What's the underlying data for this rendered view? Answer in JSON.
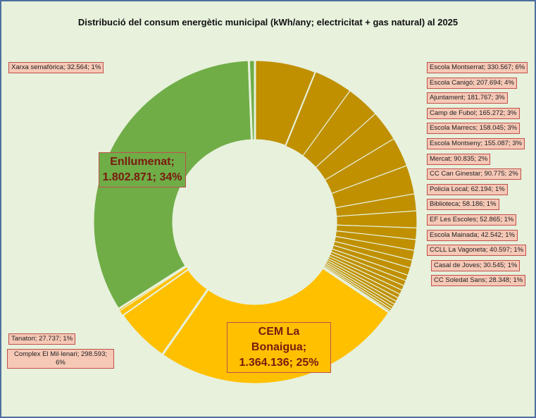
{
  "chart_data": {
    "type": "pie",
    "variant": "doughnut",
    "title": "Distribució del consum energètic municipal (kWh/any; electricitat + gas natural) al 2025",
    "slices": [
      {
        "label": "Escola Montserrat",
        "value": 330567,
        "pct": "6%",
        "text": "Escola Montserrat; 330.567; 6%"
      },
      {
        "label": "Escola Canigó",
        "value": 207694,
        "pct": "4%",
        "text": "Escola Canigó; 207.694; 4%"
      },
      {
        "label": "Ajuntament",
        "value": 181767,
        "pct": "3%",
        "text": "Ajuntament; 181.767; 3%"
      },
      {
        "label": "Camp de Fubol",
        "value": 165272,
        "pct": "3%",
        "text": "Camp de Fubol; 165.272; 3%"
      },
      {
        "label": "Escola Marrecs",
        "value": 158045,
        "pct": "3%",
        "text": "Escola Marrecs; 158.045; 3%"
      },
      {
        "label": "Escola Montseny",
        "value": 155087,
        "pct": "3%",
        "text": "Escola Montseny; 155.087; 3%"
      },
      {
        "label": "Mercat",
        "value": 90835,
        "pct": "2%",
        "text": "Mercat; 90.835; 2%"
      },
      {
        "label": "CC Can Ginestar",
        "value": 90775,
        "pct": "2%",
        "text": "CC Can Ginestar; 90.775; 2%"
      },
      {
        "label": "Policia Local",
        "value": 62194,
        "pct": "1%",
        "text": "Policia Local; 62.194; 1%"
      },
      {
        "label": "Biblioteca",
        "value": 58186,
        "pct": "1%",
        "text": "Biblioteca; 58.186; 1%"
      },
      {
        "label": "EF Les Escoles",
        "value": 52865,
        "pct": "1%",
        "text": "EF Les Escoles; 52.865; 1%"
      },
      {
        "label": "Escola Mainada",
        "value": 42542,
        "pct": "1%",
        "text": "Escola Mainada; 42.542; 1%"
      },
      {
        "label": "CCLL La Vagoneta",
        "value": 40597,
        "pct": "1%",
        "text": "CCLL La Vagoneta; 40.597; 1%"
      },
      {
        "label": "Casal de Joves",
        "value": 30545,
        "pct": "1%",
        "text": "Casal de Joves; 30.545; 1%"
      },
      {
        "label": "CC Soledat Sans",
        "value": 28348,
        "pct": "1%",
        "text": "CC Soledat Sans; 28.348; 1%"
      },
      {
        "label": "",
        "value": 26000,
        "pct": "",
        "text": ""
      },
      {
        "label": "",
        "value": 24000,
        "pct": "",
        "text": ""
      },
      {
        "label": "",
        "value": 22000,
        "pct": "",
        "text": ""
      },
      {
        "label": "",
        "value": 20000,
        "pct": "",
        "text": ""
      },
      {
        "label": "",
        "value": 18000,
        "pct": "",
        "text": ""
      },
      {
        "label": "",
        "value": 16000,
        "pct": "",
        "text": ""
      },
      {
        "label": "",
        "value": 14000,
        "pct": "",
        "text": ""
      },
      {
        "label": "",
        "value": 12000,
        "pct": "",
        "text": ""
      },
      {
        "label": "",
        "value": 10000,
        "pct": "",
        "text": ""
      },
      {
        "label": "CEM La Bonaigua",
        "value": 1364136,
        "pct": "25%",
        "text": "CEM La Bonaigua; 1.364.136; 25%"
      },
      {
        "label": "Complex El Mil·lenari",
        "value": 298593,
        "pct": "6%",
        "text": "Complex El Mil·lenari; 298.593; 6%"
      },
      {
        "label": "Tanatori",
        "value": 27737,
        "pct": "1%",
        "text": "Tanatori; 27.737; 1%"
      },
      {
        "label": "",
        "value": 12000,
        "pct": "",
        "text": ""
      },
      {
        "label": "Enllumenat",
        "value": 1802871,
        "pct": "34%",
        "text": "Enllumenat; 1.802.871; 34%"
      },
      {
        "label": "Xarxa semafòrica",
        "value": 32564,
        "pct": "1%",
        "text": "Xarxa semafòrica; 32.564; 1%"
      }
    ],
    "colors": {
      "buildings": "#c09000",
      "cem": "#ffc000",
      "lighting": "#70ad47",
      "separator": "#e7f1dc"
    },
    "labels_right": [
      {
        "text": "Escola Montserrat; 330.567; 6%"
      },
      {
        "text": "Escola Canigó; 207.694; 4%"
      },
      {
        "text": "Ajuntament; 181.767; 3%"
      },
      {
        "text": "Camp de Fubol; 165.272; 3%"
      },
      {
        "text": "Escola Marrecs; 158.045; 3%"
      },
      {
        "text": "Escola Montseny; 155.087; 3%"
      },
      {
        "text": "Mercat; 90.835; 2%"
      },
      {
        "text": "CC Can Ginestar; 90.775; 2%"
      },
      {
        "text": "Policia Local; 62.194; 1%"
      },
      {
        "text": "Biblioteca; 58.186; 1%"
      },
      {
        "text": "EF Les Escoles; 52.865; 1%"
      },
      {
        "text": "Escola Mainada; 42.542; 1%"
      },
      {
        "text": "CCLL La Vagoneta; 40.597; 1%"
      },
      {
        "text": "Casal de Joves; 30.545; 1%"
      },
      {
        "text": "CC Soledat Sans; 28.348; 1%"
      }
    ],
    "label_xarxa": "Xarxa semafòrica; 32.564; 1%",
    "label_tanatori": "Tanatori; 27.737; 1%",
    "label_complex": "Complex El Mil·lenari; 298.593; 6%",
    "label_enllumenat_line1": "Enllumenat;",
    "label_enllumenat_line2": "1.802.871; 34%",
    "label_cem_line1": "CEM La Bonaigua;",
    "label_cem_line2": "1.364.136; 25%"
  }
}
